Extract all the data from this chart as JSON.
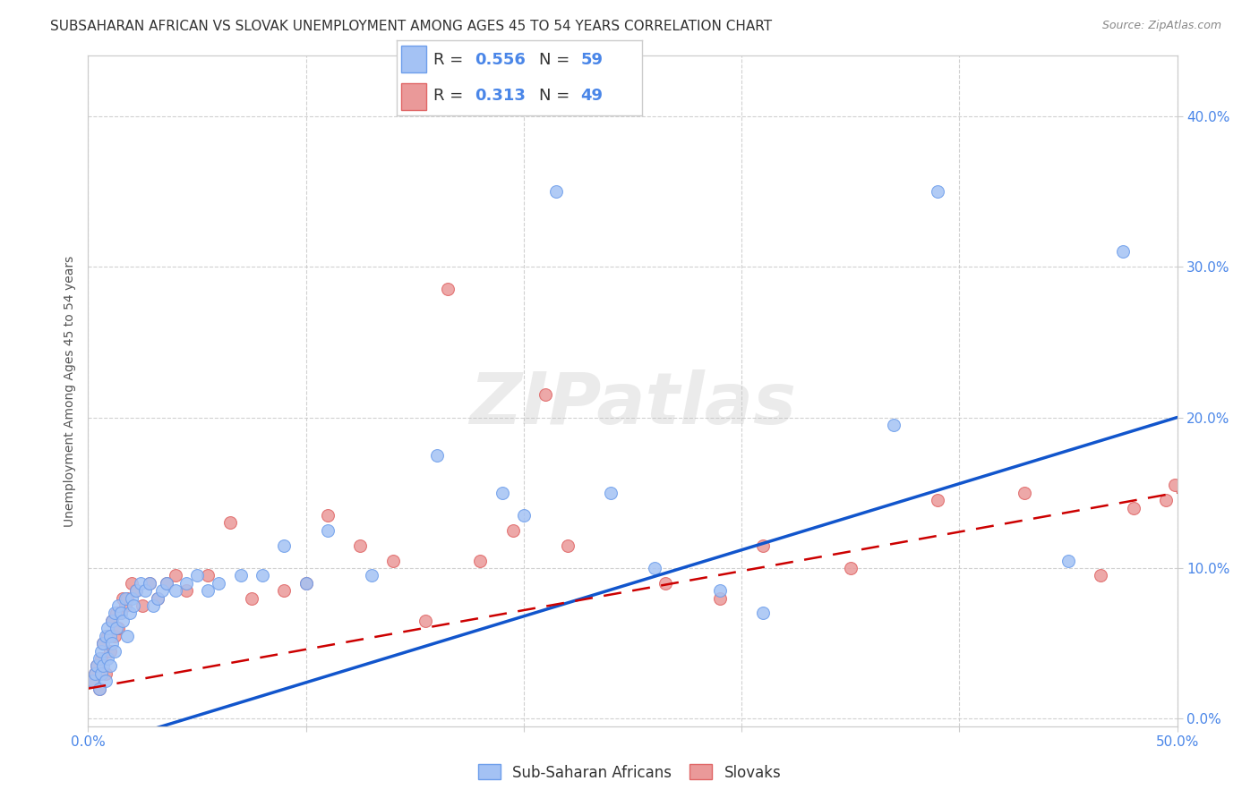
{
  "title": "SUBSAHARAN AFRICAN VS SLOVAK UNEMPLOYMENT AMONG AGES 45 TO 54 YEARS CORRELATION CHART",
  "source": "Source: ZipAtlas.com",
  "ylabel": "Unemployment Among Ages 45 to 54 years",
  "xlim": [
    0,
    0.5
  ],
  "ylim": [
    -0.005,
    0.44
  ],
  "xticks": [
    0.0,
    0.1,
    0.2,
    0.3,
    0.4,
    0.5
  ],
  "yticks": [
    0.0,
    0.1,
    0.2,
    0.3,
    0.4
  ],
  "xtick_labels": [
    "0.0%",
    "",
    "",
    "",
    "",
    "50.0%"
  ],
  "ytick_labels_right": [
    "0.0%",
    "10.0%",
    "20.0%",
    "30.0%",
    "40.0%"
  ],
  "blue_R": 0.556,
  "blue_N": 59,
  "pink_R": 0.313,
  "pink_N": 49,
  "blue_color": "#a4c2f4",
  "pink_color": "#ea9999",
  "blue_scatter_edge": "#6d9eeb",
  "pink_scatter_edge": "#e06666",
  "blue_line_color": "#1155cc",
  "pink_line_color": "#cc0000",
  "background_color": "#ffffff",
  "grid_color": "#cccccc",
  "watermark": "ZIPatlas",
  "watermark_color": "#c0c0c0",
  "title_fontsize": 11,
  "axis_label_fontsize": 10,
  "tick_fontsize": 11,
  "legend_fontsize": 12,
  "blue_line_intercept": -0.02,
  "blue_line_slope": 0.44,
  "pink_line_intercept": 0.02,
  "pink_line_slope": 0.26,
  "blue_x": [
    0.002,
    0.003,
    0.004,
    0.005,
    0.005,
    0.006,
    0.006,
    0.007,
    0.007,
    0.008,
    0.008,
    0.009,
    0.009,
    0.01,
    0.01,
    0.011,
    0.011,
    0.012,
    0.012,
    0.013,
    0.014,
    0.015,
    0.016,
    0.017,
    0.018,
    0.019,
    0.02,
    0.021,
    0.022,
    0.024,
    0.026,
    0.028,
    0.03,
    0.032,
    0.034,
    0.036,
    0.04,
    0.045,
    0.05,
    0.055,
    0.06,
    0.07,
    0.08,
    0.09,
    0.1,
    0.11,
    0.13,
    0.16,
    0.19,
    0.2,
    0.215,
    0.24,
    0.26,
    0.29,
    0.31,
    0.37,
    0.39,
    0.45,
    0.475
  ],
  "blue_y": [
    0.025,
    0.03,
    0.035,
    0.02,
    0.04,
    0.03,
    0.045,
    0.035,
    0.05,
    0.025,
    0.055,
    0.04,
    0.06,
    0.035,
    0.055,
    0.05,
    0.065,
    0.045,
    0.07,
    0.06,
    0.075,
    0.07,
    0.065,
    0.08,
    0.055,
    0.07,
    0.08,
    0.075,
    0.085,
    0.09,
    0.085,
    0.09,
    0.075,
    0.08,
    0.085,
    0.09,
    0.085,
    0.09,
    0.095,
    0.085,
    0.09,
    0.095,
    0.095,
    0.115,
    0.09,
    0.125,
    0.095,
    0.175,
    0.15,
    0.135,
    0.35,
    0.15,
    0.1,
    0.085,
    0.07,
    0.195,
    0.35,
    0.105,
    0.31
  ],
  "pink_x": [
    0.002,
    0.003,
    0.004,
    0.005,
    0.006,
    0.007,
    0.008,
    0.009,
    0.01,
    0.011,
    0.012,
    0.013,
    0.014,
    0.015,
    0.016,
    0.017,
    0.018,
    0.02,
    0.022,
    0.025,
    0.028,
    0.032,
    0.036,
    0.04,
    0.045,
    0.055,
    0.065,
    0.075,
    0.09,
    0.1,
    0.11,
    0.125,
    0.14,
    0.155,
    0.165,
    0.18,
    0.195,
    0.21,
    0.22,
    0.265,
    0.29,
    0.31,
    0.35,
    0.39,
    0.43,
    0.465,
    0.48,
    0.495,
    0.499
  ],
  "pink_y": [
    0.025,
    0.03,
    0.035,
    0.02,
    0.04,
    0.05,
    0.03,
    0.055,
    0.045,
    0.065,
    0.055,
    0.07,
    0.06,
    0.07,
    0.08,
    0.075,
    0.08,
    0.09,
    0.085,
    0.075,
    0.09,
    0.08,
    0.09,
    0.095,
    0.085,
    0.095,
    0.13,
    0.08,
    0.085,
    0.09,
    0.135,
    0.115,
    0.105,
    0.065,
    0.285,
    0.105,
    0.125,
    0.215,
    0.115,
    0.09,
    0.08,
    0.115,
    0.1,
    0.145,
    0.15,
    0.095,
    0.14,
    0.145,
    0.155
  ]
}
